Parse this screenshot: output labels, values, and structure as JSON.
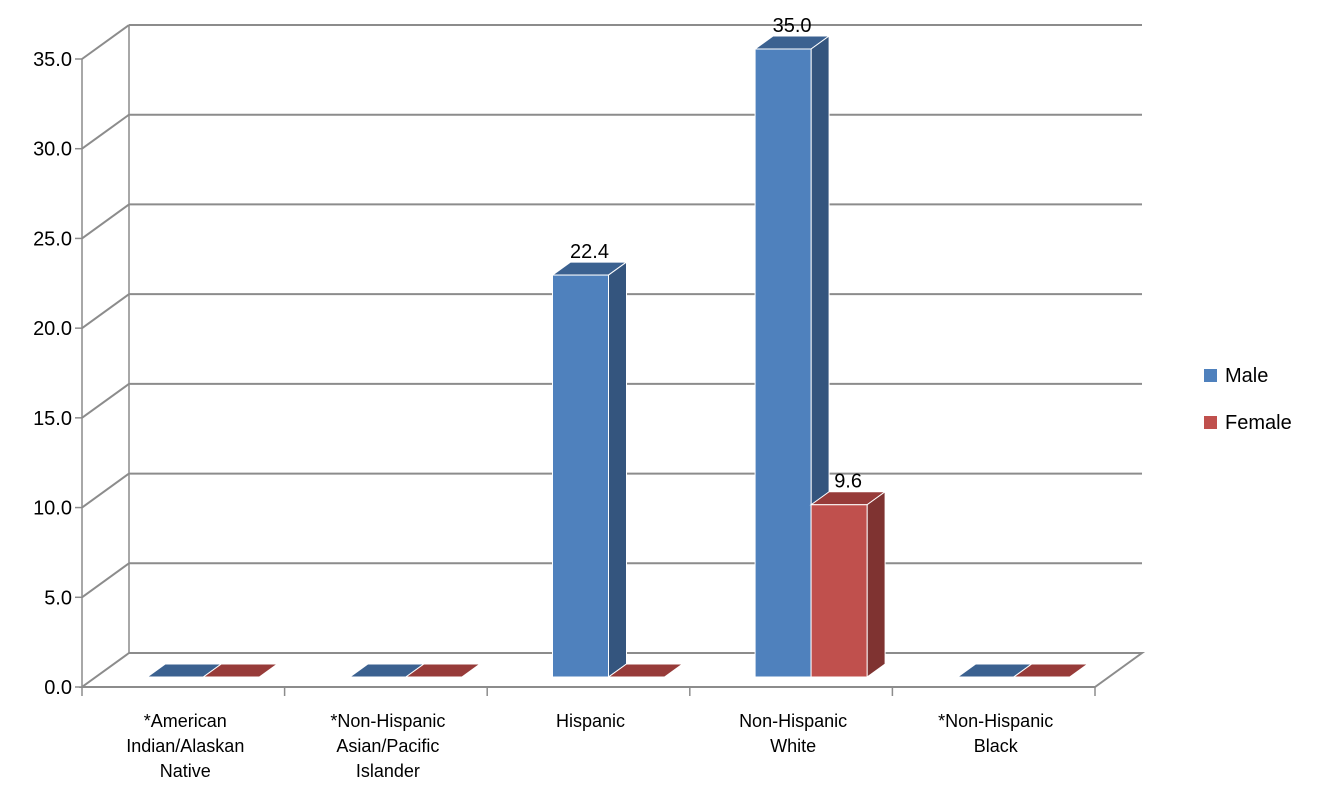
{
  "chart_data": {
    "type": "bar",
    "categories": [
      [
        "*American",
        "Indian/Alaskan",
        "Native"
      ],
      [
        "*Non-Hispanic",
        "Asian/Pacific",
        "Islander"
      ],
      [
        "Hispanic"
      ],
      [
        "Non-Hispanic",
        "White"
      ],
      [
        "*Non-Hispanic",
        "Black"
      ]
    ],
    "series": [
      {
        "name": "Male",
        "values": [
          0,
          0,
          22.4,
          35.0,
          0
        ],
        "labels": [
          "",
          "",
          "22.4",
          "35.0",
          ""
        ]
      },
      {
        "name": "Female",
        "values": [
          0,
          0,
          0,
          9.6,
          0
        ],
        "labels": [
          "",
          "",
          "",
          "9.6",
          ""
        ]
      }
    ],
    "y_ticks": [
      "0.0",
      "5.0",
      "10.0",
      "15.0",
      "20.0",
      "25.0",
      "30.0",
      "35.0"
    ],
    "ylim": [
      0,
      35
    ],
    "grid": true,
    "legend_position": "right",
    "colors": {
      "Male": {
        "front": "#4f81bd",
        "side": "#34557e",
        "top": "#3b6190"
      },
      "Female": {
        "front": "#c0504d",
        "side": "#7f3331",
        "top": "#973b39"
      },
      "grid": "#8c8c8c"
    }
  }
}
